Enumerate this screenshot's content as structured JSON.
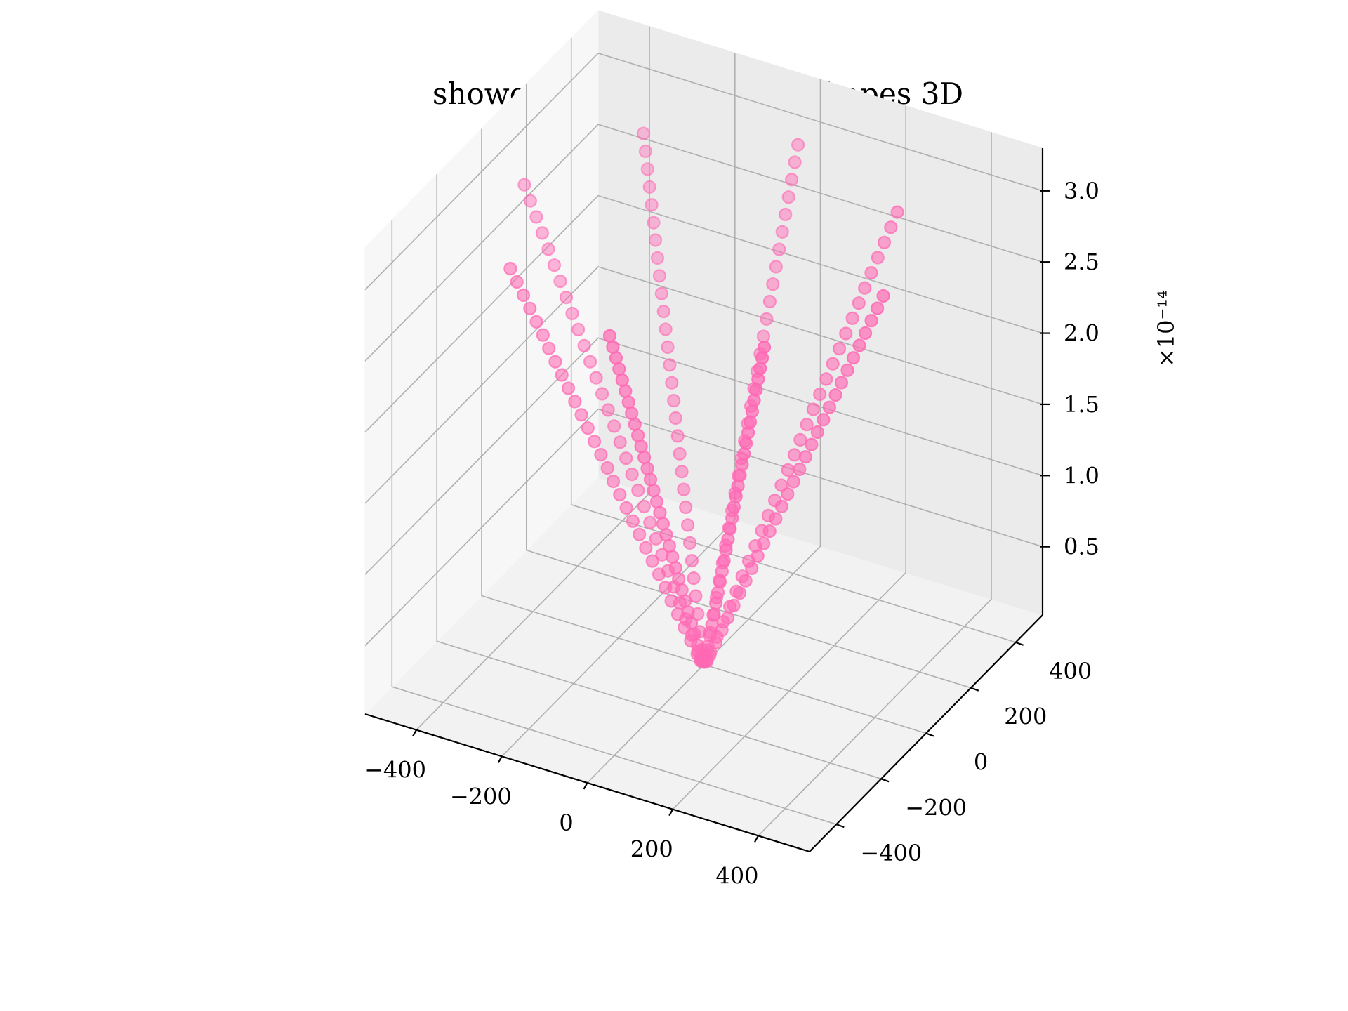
{
  "chart_data": {
    "type": "scatter",
    "title": "shower groundplane starshapes 3D",
    "xlabel": "",
    "ylabel": "",
    "zlabel": "",
    "x_ticks": [
      "−400",
      "−200",
      "0",
      "200",
      "400"
    ],
    "y_ticks": [
      "−400",
      "−200",
      "0",
      "200",
      "400"
    ],
    "z_ticks": [
      "0.5",
      "1.0",
      "1.5",
      "2.0",
      "2.5",
      "3.0"
    ],
    "z_offset_label": "×10⁻¹⁴",
    "xlim": [
      -520,
      520
    ],
    "ylim": [
      -520,
      520
    ],
    "zlim": [
      0.02,
      3.3
    ],
    "z_scale": "1e-14",
    "marker_color": "#ff69b4",
    "grid": true,
    "series": [
      {
        "arms": [
          {
            "x": [
              -7,
              -14,
              -28,
              -42,
              -56,
              -70,
              -84,
              -98,
              -112,
              -126,
              -140,
              -154,
              -168,
              -182,
              -196,
              -210,
              -224,
              -238,
              -252,
              -266,
              -280,
              -294,
              -308,
              -322,
              -336,
              -350,
              -364,
              -378,
              -392,
              -406,
              -420
            ],
            "y": [
              0,
              0,
              0,
              0,
              0,
              0,
              0,
              0,
              0,
              0,
              0,
              0,
              0,
              0,
              0,
              0,
              0,
              0,
              0,
              0,
              0,
              0,
              0,
              0,
              0,
              0,
              0,
              0,
              0,
              0,
              0
            ]
          },
          {
            "x": [
              7,
              14,
              28,
              42,
              56,
              70,
              84,
              98,
              112,
              126,
              140,
              154,
              168,
              182,
              196,
              210,
              224,
              238,
              252,
              266,
              280,
              294,
              308,
              322,
              336,
              350,
              364,
              378,
              392,
              406,
              420
            ],
            "y": [
              0,
              0,
              0,
              0,
              0,
              0,
              0,
              0,
              0,
              0,
              0,
              0,
              0,
              0,
              0,
              0,
              0,
              0,
              0,
              0,
              0,
              0,
              0,
              0,
              0,
              0,
              0,
              0,
              0,
              0,
              0
            ]
          },
          {
            "x": [
              0,
              0,
              0,
              0,
              0,
              0,
              0,
              0,
              0,
              0,
              0,
              0,
              0,
              0,
              0,
              0,
              0,
              0,
              0,
              0,
              0,
              0,
              0,
              0,
              0,
              0,
              0,
              0,
              0,
              0,
              0
            ],
            "y": [
              -7,
              -14,
              -28,
              -42,
              -56,
              -70,
              -84,
              -98,
              -112,
              -126,
              -140,
              -154,
              -168,
              -182,
              -196,
              -210,
              -224,
              -238,
              -252,
              -266,
              -280,
              -294,
              -308,
              -322,
              -336,
              -350,
              -364,
              -378,
              -392,
              -406,
              -420
            ]
          },
          {
            "x": [
              0,
              0,
              0,
              0,
              0,
              0,
              0,
              0,
              0,
              0,
              0,
              0,
              0,
              0,
              0,
              0,
              0,
              0,
              0,
              0,
              0,
              0,
              0,
              0,
              0,
              0,
              0,
              0,
              0,
              0,
              0
            ],
            "y": [
              7,
              14,
              28,
              42,
              56,
              70,
              84,
              98,
              112,
              126,
              140,
              154,
              168,
              182,
              196,
              210,
              224,
              238,
              252,
              266,
              280,
              294,
              308,
              322,
              336,
              350,
              364,
              378,
              392,
              406,
              420
            ]
          },
          {
            "x": [
              -5,
              -10,
              -20,
              -30,
              -40,
              -50,
              -59,
              -69,
              -79,
              -89,
              -99,
              -109,
              -119,
              -129,
              -139,
              -148,
              -158,
              -168,
              -178,
              -188,
              -198,
              -208,
              -218,
              -228,
              -238,
              -247,
              -257,
              -267,
              -277,
              -287,
              -297
            ],
            "y": [
              -5,
              -10,
              -20,
              -30,
              -40,
              -50,
              -59,
              -69,
              -79,
              -89,
              -99,
              -109,
              -119,
              -129,
              -139,
              -148,
              -158,
              -168,
              -178,
              -188,
              -198,
              -208,
              -218,
              -228,
              -238,
              -247,
              -257,
              -267,
              -277,
              -287,
              -297
            ]
          },
          {
            "x": [
              5,
              10,
              20,
              30,
              40,
              50,
              59,
              69,
              79,
              89,
              99,
              109,
              119,
              129,
              139,
              148,
              158,
              168,
              178,
              188,
              198,
              208,
              218,
              228,
              238,
              247,
              257,
              267,
              277,
              287,
              297
            ],
            "y": [
              5,
              10,
              20,
              30,
              40,
              50,
              59,
              69,
              79,
              89,
              99,
              109,
              119,
              129,
              139,
              148,
              158,
              168,
              178,
              188,
              198,
              208,
              218,
              228,
              238,
              247,
              257,
              267,
              277,
              287,
              297
            ]
          },
          {
            "x": [
              -5,
              -10,
              -20,
              -30,
              -40,
              -50,
              -59,
              -69,
              -79,
              -89,
              -99,
              -109,
              -119,
              -129,
              -139,
              -148,
              -158,
              -168,
              -178,
              -188,
              -198,
              -208,
              -218,
              -228,
              -238,
              -247,
              -257,
              -267,
              -277,
              -287,
              -297
            ],
            "y": [
              5,
              10,
              20,
              30,
              40,
              50,
              59,
              69,
              79,
              89,
              99,
              109,
              119,
              129,
              139,
              148,
              158,
              168,
              178,
              188,
              198,
              208,
              218,
              228,
              238,
              247,
              257,
              267,
              277,
              287,
              297
            ]
          },
          {
            "x": [
              5,
              10,
              20,
              30,
              40,
              50,
              59,
              69,
              79,
              89,
              99,
              109,
              119,
              129,
              139,
              148,
              158,
              168,
              178,
              188,
              198,
              208,
              218,
              228,
              238,
              247,
              257,
              267,
              277,
              287,
              297
            ],
            "y": [
              -5,
              -10,
              -20,
              -30,
              -40,
              -50,
              -59,
              -69,
              -79,
              -89,
              -99,
              -109,
              -119,
              -129,
              -139,
              -148,
              -158,
              -168,
              -178,
              -188,
              -198,
              -208,
              -218,
              -228,
              -238,
              -247,
              -257,
              -267,
              -277,
              -287,
              -297
            ]
          }
        ],
        "z": [
          0.05,
          0.1,
          0.2,
          0.3,
          0.4,
          0.5,
          0.6,
          0.7,
          0.8,
          0.9,
          1.0,
          1.1,
          1.2,
          1.3,
          1.4,
          1.5,
          1.6,
          1.7,
          1.8,
          1.9,
          2.0,
          2.1,
          2.2,
          2.3,
          2.4,
          2.5,
          2.6,
          2.7,
          2.8,
          2.9,
          3.0
        ]
      }
    ]
  }
}
